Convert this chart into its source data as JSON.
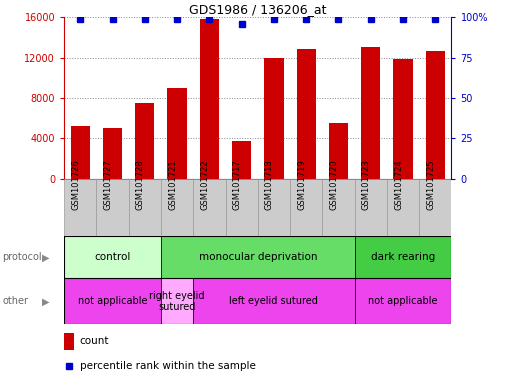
{
  "title": "GDS1986 / 136206_at",
  "samples": [
    "GSM101726",
    "GSM101727",
    "GSM101728",
    "GSM101721",
    "GSM101722",
    "GSM101717",
    "GSM101718",
    "GSM101719",
    "GSM101720",
    "GSM101723",
    "GSM101724",
    "GSM101725"
  ],
  "counts": [
    5200,
    5000,
    7500,
    9000,
    15800,
    3700,
    12000,
    12900,
    5500,
    13100,
    11900,
    12700
  ],
  "percentiles": [
    99,
    99,
    99,
    99,
    99,
    96,
    99,
    99,
    99,
    99,
    99,
    99
  ],
  "ylim_left": [
    0,
    16000
  ],
  "ylim_right": [
    0,
    100
  ],
  "yticks_left": [
    0,
    4000,
    8000,
    12000,
    16000
  ],
  "yticks_right": [
    0,
    25,
    50,
    75,
    100
  ],
  "bar_color": "#cc0000",
  "dot_color": "#0000cc",
  "protocol_groups": [
    {
      "label": "control",
      "start": 0,
      "end": 3,
      "color": "#ccffcc"
    },
    {
      "label": "monocular deprivation",
      "start": 3,
      "end": 9,
      "color": "#66dd66"
    },
    {
      "label": "dark rearing",
      "start": 9,
      "end": 12,
      "color": "#44cc44"
    }
  ],
  "other_groups": [
    {
      "label": "not applicable",
      "start": 0,
      "end": 3,
      "color": "#ee44ee"
    },
    {
      "label": "right eyelid\nsutured",
      "start": 3,
      "end": 4,
      "color": "#ffaaff"
    },
    {
      "label": "left eyelid sutured",
      "start": 4,
      "end": 9,
      "color": "#ee44ee"
    },
    {
      "label": "not applicable",
      "start": 9,
      "end": 12,
      "color": "#ee44ee"
    }
  ],
  "protocol_label": "protocol",
  "other_label": "other",
  "legend_count_color": "#cc0000",
  "legend_pct_color": "#0000cc",
  "background_color": "#ffffff",
  "tick_label_bg": "#cccccc"
}
